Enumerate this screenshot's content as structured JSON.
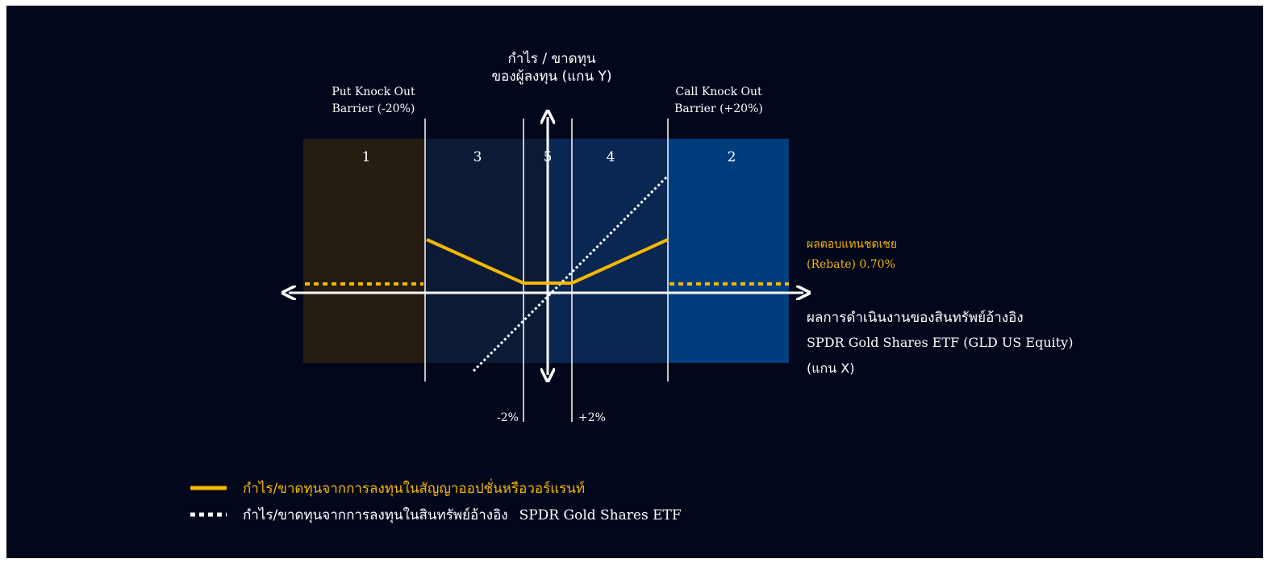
{
  "y_axis": {
    "label_line1": "กำไร / ขาดทุน",
    "label_line2": "ของผู้ลงทุน (แกน Y)"
  },
  "x_axis": {
    "label_line1": "ผลการดำเนินงานของสินทรัพย์อ้างอิง",
    "label_line2": "SPDR Gold Shares  ETF (GLD US Equity)",
    "label_line3": "(แกน X)"
  },
  "barriers": {
    "put_line1": "Put Knock Out",
    "put_line2": "Barrier (-20%)",
    "call_line1": "Call Knock Out",
    "call_line2": "Barrier (+20%)"
  },
  "thresholds": {
    "minus": "-2%",
    "plus": "+2%"
  },
  "zones": {
    "z1": "1",
    "z2": "2",
    "z3": "3",
    "z4": "4",
    "z5": "5"
  },
  "rebate": {
    "line1": "ผลตอบแทนชดเชย",
    "line2": "(Rebate) 0.70%"
  },
  "legend": {
    "option_label": "กำไร/ขาดทุนจากการลงทุนในสัญญาออปชั่นหรือวอร์แรนท์",
    "underlying_label_th": "กำไร/ขาดทุนจากการลงทุนในสินทรัพย์อ้างอิง",
    "underlying_label_en": "SPDR Gold Shares  ETF"
  },
  "colors": {
    "background": "#03071c",
    "zone_put_knockout": "#251c12",
    "zone_left": "#0c1a35",
    "zone_right": "#0a2652",
    "zone_call_knockout": "#003d7c",
    "option_payoff": "#f5b800",
    "underlying": "#ffffff",
    "axis": "#ffffff"
  }
}
